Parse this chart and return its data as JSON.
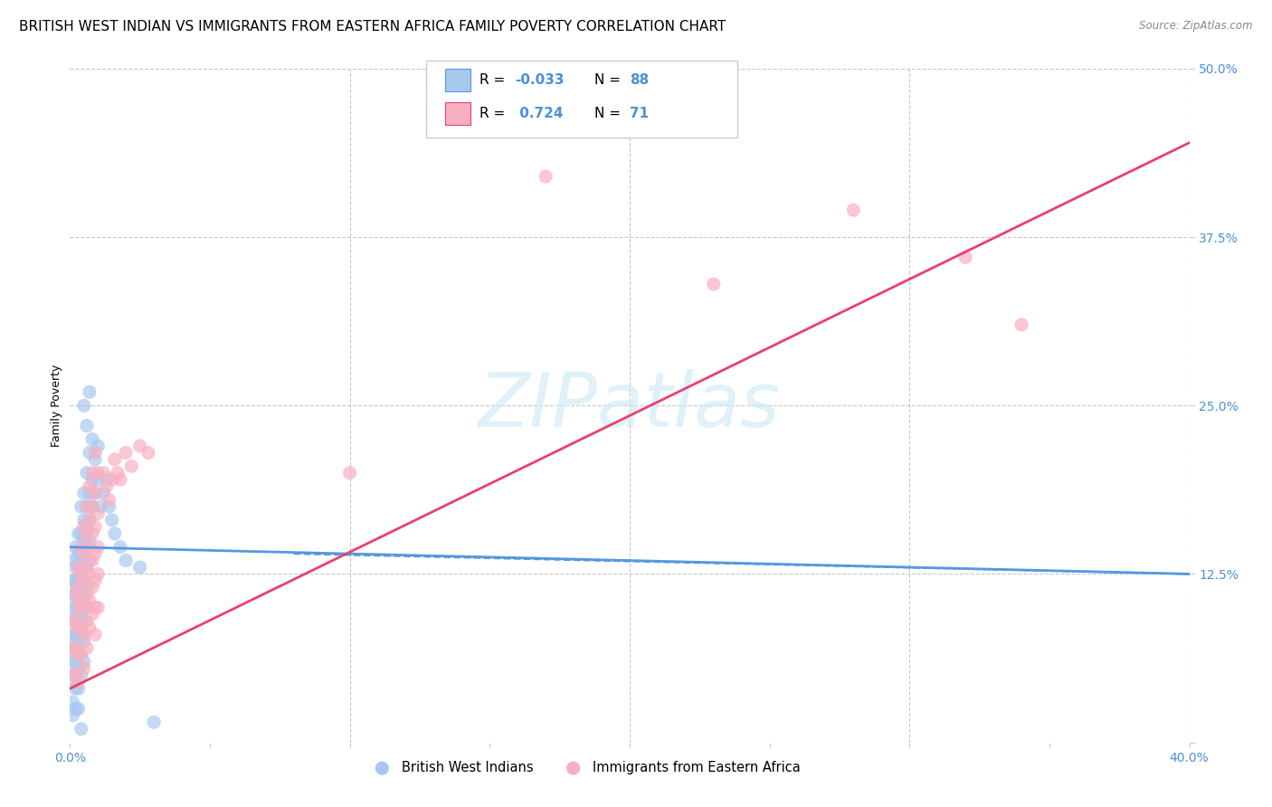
{
  "title": "BRITISH WEST INDIAN VS IMMIGRANTS FROM EASTERN AFRICA FAMILY POVERTY CORRELATION CHART",
  "source": "Source: ZipAtlas.com",
  "ylabel": "Family Poverty",
  "xlim": [
    0.0,
    0.4
  ],
  "ylim": [
    0.0,
    0.5
  ],
  "xticks": [
    0.0,
    0.05,
    0.1,
    0.15,
    0.2,
    0.25,
    0.3,
    0.35,
    0.4
  ],
  "xticklabels": [
    "0.0%",
    "",
    "",
    "",
    "",
    "",
    "",
    "",
    "40.0%"
  ],
  "yticks": [
    0.0,
    0.125,
    0.25,
    0.375,
    0.5
  ],
  "yticklabels": [
    "",
    "12.5%",
    "25.0%",
    "37.5%",
    "50.0%"
  ],
  "background_color": "#ffffff",
  "grid_color": "#c8c8c8",
  "watermark": "ZIPatlas",
  "blue_color": "#a8c8f0",
  "blue_edge_color": "#5599dd",
  "pink_color": "#f8b0c0",
  "pink_edge_color": "#e84070",
  "title_fontsize": 11,
  "axis_label_fontsize": 9,
  "tick_fontsize": 10,
  "blue_scatter": [
    [
      0.001,
      0.135
    ],
    [
      0.001,
      0.12
    ],
    [
      0.001,
      0.115
    ],
    [
      0.001,
      0.105
    ],
    [
      0.001,
      0.095
    ],
    [
      0.001,
      0.085
    ],
    [
      0.001,
      0.075
    ],
    [
      0.001,
      0.065
    ],
    [
      0.001,
      0.055
    ],
    [
      0.001,
      0.045
    ],
    [
      0.001,
      0.03
    ],
    [
      0.001,
      0.02
    ],
    [
      0.002,
      0.145
    ],
    [
      0.002,
      0.13
    ],
    [
      0.002,
      0.12
    ],
    [
      0.002,
      0.11
    ],
    [
      0.002,
      0.1
    ],
    [
      0.002,
      0.09
    ],
    [
      0.002,
      0.08
    ],
    [
      0.002,
      0.07
    ],
    [
      0.002,
      0.06
    ],
    [
      0.002,
      0.05
    ],
    [
      0.002,
      0.04
    ],
    [
      0.002,
      0.025
    ],
    [
      0.003,
      0.155
    ],
    [
      0.003,
      0.14
    ],
    [
      0.003,
      0.13
    ],
    [
      0.003,
      0.12
    ],
    [
      0.003,
      0.11
    ],
    [
      0.003,
      0.1
    ],
    [
      0.003,
      0.09
    ],
    [
      0.003,
      0.08
    ],
    [
      0.003,
      0.07
    ],
    [
      0.003,
      0.055
    ],
    [
      0.003,
      0.04
    ],
    [
      0.003,
      0.025
    ],
    [
      0.004,
      0.175
    ],
    [
      0.004,
      0.155
    ],
    [
      0.004,
      0.14
    ],
    [
      0.004,
      0.13
    ],
    [
      0.004,
      0.12
    ],
    [
      0.004,
      0.11
    ],
    [
      0.004,
      0.095
    ],
    [
      0.004,
      0.08
    ],
    [
      0.004,
      0.065
    ],
    [
      0.004,
      0.05
    ],
    [
      0.005,
      0.185
    ],
    [
      0.005,
      0.165
    ],
    [
      0.005,
      0.15
    ],
    [
      0.005,
      0.135
    ],
    [
      0.005,
      0.12
    ],
    [
      0.005,
      0.105
    ],
    [
      0.005,
      0.09
    ],
    [
      0.005,
      0.075
    ],
    [
      0.005,
      0.06
    ],
    [
      0.006,
      0.2
    ],
    [
      0.006,
      0.175
    ],
    [
      0.006,
      0.16
    ],
    [
      0.006,
      0.145
    ],
    [
      0.006,
      0.13
    ],
    [
      0.006,
      0.115
    ],
    [
      0.006,
      0.1
    ],
    [
      0.007,
      0.215
    ],
    [
      0.007,
      0.185
    ],
    [
      0.007,
      0.165
    ],
    [
      0.007,
      0.15
    ],
    [
      0.007,
      0.135
    ],
    [
      0.008,
      0.225
    ],
    [
      0.008,
      0.195
    ],
    [
      0.008,
      0.175
    ],
    [
      0.009,
      0.21
    ],
    [
      0.009,
      0.185
    ],
    [
      0.01,
      0.22
    ],
    [
      0.01,
      0.195
    ],
    [
      0.011,
      0.175
    ],
    [
      0.012,
      0.185
    ],
    [
      0.013,
      0.195
    ],
    [
      0.014,
      0.175
    ],
    [
      0.015,
      0.165
    ],
    [
      0.016,
      0.155
    ],
    [
      0.005,
      0.25
    ],
    [
      0.006,
      0.235
    ],
    [
      0.018,
      0.145
    ],
    [
      0.02,
      0.135
    ],
    [
      0.025,
      0.13
    ],
    [
      0.03,
      0.015
    ],
    [
      0.007,
      0.26
    ],
    [
      0.004,
      0.01
    ]
  ],
  "pink_scatter": [
    [
      0.001,
      0.09
    ],
    [
      0.001,
      0.07
    ],
    [
      0.001,
      0.05
    ],
    [
      0.002,
      0.11
    ],
    [
      0.002,
      0.09
    ],
    [
      0.002,
      0.07
    ],
    [
      0.002,
      0.05
    ],
    [
      0.003,
      0.13
    ],
    [
      0.003,
      0.115
    ],
    [
      0.003,
      0.1
    ],
    [
      0.003,
      0.085
    ],
    [
      0.003,
      0.065
    ],
    [
      0.003,
      0.045
    ],
    [
      0.004,
      0.145
    ],
    [
      0.004,
      0.125
    ],
    [
      0.004,
      0.105
    ],
    [
      0.004,
      0.085
    ],
    [
      0.004,
      0.065
    ],
    [
      0.005,
      0.16
    ],
    [
      0.005,
      0.14
    ],
    [
      0.005,
      0.12
    ],
    [
      0.005,
      0.1
    ],
    [
      0.005,
      0.08
    ],
    [
      0.005,
      0.055
    ],
    [
      0.006,
      0.175
    ],
    [
      0.006,
      0.155
    ],
    [
      0.006,
      0.13
    ],
    [
      0.006,
      0.11
    ],
    [
      0.006,
      0.09
    ],
    [
      0.006,
      0.07
    ],
    [
      0.007,
      0.19
    ],
    [
      0.007,
      0.165
    ],
    [
      0.007,
      0.145
    ],
    [
      0.007,
      0.125
    ],
    [
      0.007,
      0.105
    ],
    [
      0.007,
      0.085
    ],
    [
      0.008,
      0.2
    ],
    [
      0.008,
      0.175
    ],
    [
      0.008,
      0.155
    ],
    [
      0.008,
      0.135
    ],
    [
      0.008,
      0.115
    ],
    [
      0.008,
      0.095
    ],
    [
      0.009,
      0.215
    ],
    [
      0.009,
      0.185
    ],
    [
      0.009,
      0.16
    ],
    [
      0.009,
      0.14
    ],
    [
      0.009,
      0.12
    ],
    [
      0.009,
      0.1
    ],
    [
      0.009,
      0.08
    ],
    [
      0.01,
      0.2
    ],
    [
      0.01,
      0.17
    ],
    [
      0.01,
      0.145
    ],
    [
      0.01,
      0.125
    ],
    [
      0.01,
      0.1
    ],
    [
      0.012,
      0.2
    ],
    [
      0.013,
      0.19
    ],
    [
      0.014,
      0.18
    ],
    [
      0.015,
      0.195
    ],
    [
      0.016,
      0.21
    ],
    [
      0.017,
      0.2
    ],
    [
      0.018,
      0.195
    ],
    [
      0.02,
      0.215
    ],
    [
      0.022,
      0.205
    ],
    [
      0.025,
      0.22
    ],
    [
      0.028,
      0.215
    ],
    [
      0.1,
      0.2
    ],
    [
      0.17,
      0.42
    ],
    [
      0.23,
      0.34
    ],
    [
      0.28,
      0.395
    ],
    [
      0.32,
      0.36
    ],
    [
      0.34,
      0.31
    ]
  ],
  "blue_line_x": [
    0.0,
    0.4
  ],
  "blue_line_y": [
    0.145,
    0.125
  ],
  "pink_line_x": [
    0.0,
    0.4
  ],
  "pink_line_y": [
    0.04,
    0.445
  ]
}
